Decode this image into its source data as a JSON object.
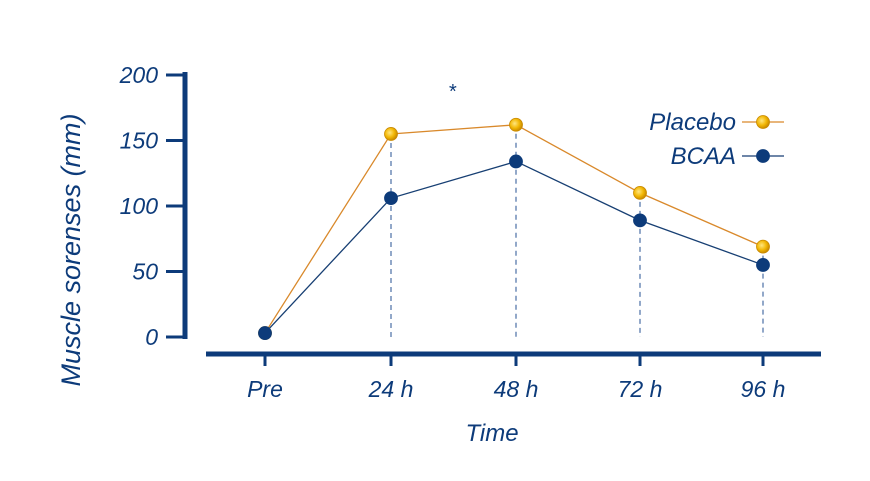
{
  "chart_data": {
    "type": "line",
    "title": "",
    "xlabel": "Time",
    "ylabel": "Muscle sorenses (mm)",
    "categories": [
      "Pre",
      "24 h",
      "48 h",
      "72 h",
      "96 h"
    ],
    "yticks": [
      "0",
      "50",
      "100",
      "150",
      "200"
    ],
    "ylim": [
      0,
      200
    ],
    "grid": false,
    "legend_position": "top-right",
    "annotation": "*",
    "series": [
      {
        "name": "Placebo",
        "values": [
          3,
          155,
          162,
          110,
          69
        ],
        "color": "#d9892b",
        "marker_color": "#e8b30e"
      },
      {
        "name": "BCAA",
        "values": [
          3,
          106,
          134,
          89,
          55
        ],
        "color": "#173f73",
        "marker_color": "#0d3b7a"
      }
    ],
    "axis_color": "#0d3b7a",
    "guide_color": "#4a6fa5"
  }
}
